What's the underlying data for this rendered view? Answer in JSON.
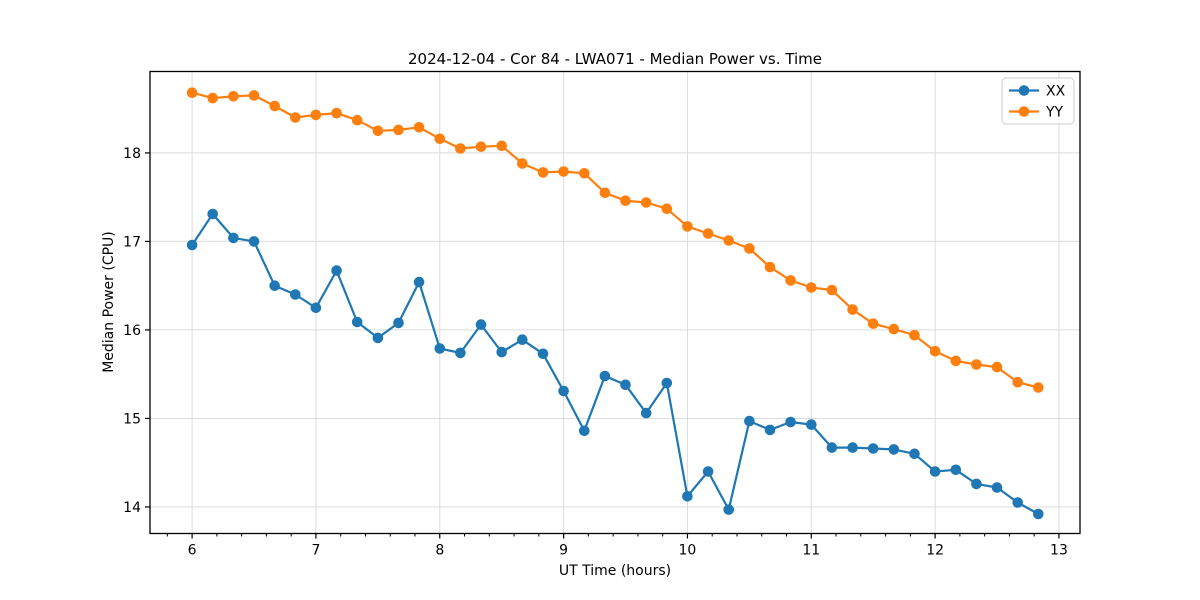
{
  "chart_data": {
    "type": "line",
    "title": "2024-12-04 - Cor 84 - LWA071 - Median Power vs. Time",
    "xlabel": "UT Time (hours)",
    "ylabel": "Median Power (CPU)",
    "xlim": [
      5.66,
      13.17
    ],
    "ylim": [
      13.7,
      18.92
    ],
    "xticks": [
      6,
      7,
      8,
      9,
      10,
      11,
      12,
      13
    ],
    "yticks": [
      14,
      15,
      16,
      17,
      18
    ],
    "x_minor_tick_step": 0.2,
    "grid": true,
    "grid_color": "#dcdcdc",
    "legend_position": "upper right",
    "marker": "circle",
    "x": [
      6.0,
      6.1667,
      6.3333,
      6.5,
      6.6667,
      6.8333,
      7.0,
      7.1667,
      7.3333,
      7.5,
      7.6667,
      7.8333,
      8.0,
      8.1667,
      8.3333,
      8.5,
      8.6667,
      8.8333,
      9.0,
      9.1667,
      9.3333,
      9.5,
      9.6667,
      9.8333,
      10.0,
      10.1667,
      10.3333,
      10.5,
      10.6667,
      10.8333,
      11.0,
      11.1667,
      11.3333,
      11.5,
      11.6667,
      11.8333,
      12.0,
      12.1667,
      12.3333,
      12.5,
      12.6667,
      12.8333
    ],
    "series": [
      {
        "name": "XX",
        "color": "#1f77b4",
        "values": [
          16.96,
          17.31,
          17.04,
          17.0,
          16.5,
          16.4,
          16.25,
          16.67,
          16.09,
          15.91,
          16.08,
          16.54,
          15.79,
          15.74,
          16.06,
          15.75,
          15.89,
          15.73,
          15.31,
          14.86,
          15.48,
          15.38,
          15.06,
          15.4,
          14.12,
          14.4,
          13.97,
          14.97,
          14.87,
          14.96,
          14.93,
          14.67,
          14.67,
          14.66,
          14.65,
          14.6,
          14.4,
          14.42,
          14.26,
          14.22,
          14.05,
          13.92
        ]
      },
      {
        "name": "YY",
        "color": "#ff7f0e",
        "values": [
          18.68,
          18.62,
          18.64,
          18.65,
          18.53,
          18.4,
          18.43,
          18.45,
          18.37,
          18.25,
          18.26,
          18.29,
          18.16,
          18.05,
          18.07,
          18.08,
          17.88,
          17.78,
          17.79,
          17.77,
          17.55,
          17.46,
          17.44,
          17.37,
          17.17,
          17.09,
          17.01,
          16.92,
          16.71,
          16.56,
          16.48,
          16.45,
          16.23,
          16.07,
          16.01,
          15.94,
          15.76,
          15.65,
          15.61,
          15.58,
          15.41,
          15.35
        ]
      }
    ]
  }
}
